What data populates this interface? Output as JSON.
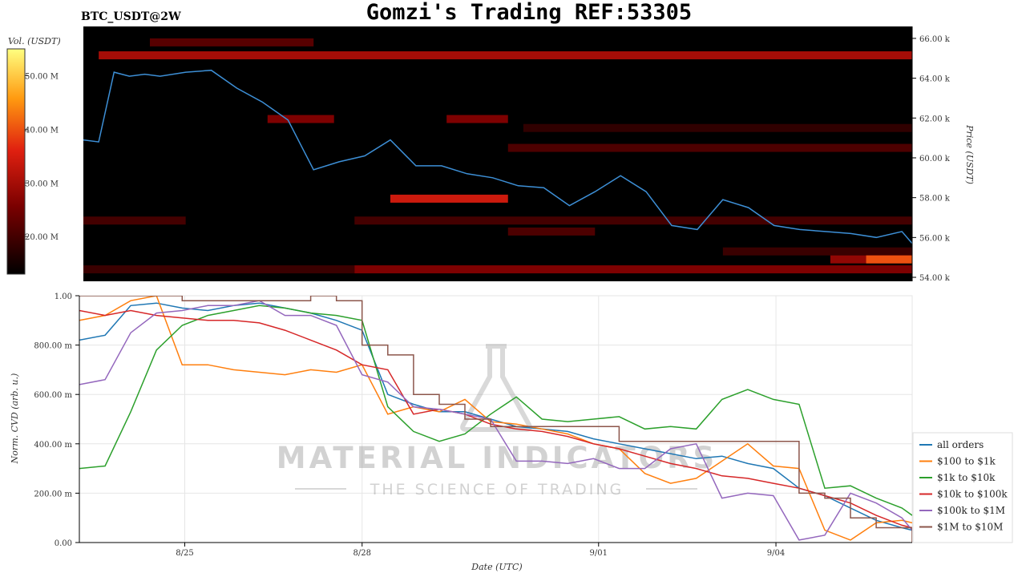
{
  "header": {
    "pair": "BTC_USDT@2W",
    "title": "Gomzi's Trading REF:53305"
  },
  "colorbar": {
    "label": "Vol. (USDT)",
    "ticks": [
      "50.00 M",
      "40.00 M",
      "30.00 M",
      "20.00 M"
    ],
    "tick_values": [
      50,
      40,
      30,
      20
    ],
    "range": [
      13,
      55
    ]
  },
  "watermark": {
    "line1": "MATERIAL INDICATORS",
    "line2": "THE SCIENCE OF TRADING"
  },
  "colors": {
    "price_line": "#3d8fd6",
    "heat_low": "#000000",
    "heat_mid": "#cc1a10",
    "heat_high": "#ffff66"
  },
  "chart_data": [
    {
      "type": "heatmap",
      "title": "",
      "ylabel": "Price (USDT)",
      "ylim": [
        53800,
        66600
      ],
      "y_ticks": [
        54000,
        56000,
        58000,
        60000,
        62000,
        64000,
        66000
      ],
      "y_tick_labels": [
        "54.00 k",
        "56.00 k",
        "58.00 k",
        "60.00 k",
        "62.00 k",
        "64.00 k",
        "66.00 k"
      ],
      "x_range_days": [
        0,
        16.2
      ],
      "price_series": {
        "name": "Price",
        "x_days": [
          0,
          0.3,
          0.6,
          0.9,
          1.2,
          1.5,
          2,
          2.5,
          3,
          3.5,
          4,
          4.5,
          5,
          5.5,
          6,
          6.5,
          7,
          7.5,
          8,
          8.5,
          9,
          9.5,
          10,
          10.5,
          11,
          11.5,
          12,
          12.5,
          13,
          13.5,
          14,
          14.5,
          15,
          15.5,
          16,
          16.2
        ],
        "values": [
          60900,
          60800,
          64300,
          64100,
          64200,
          64100,
          64300,
          64400,
          63500,
          62800,
          61900,
          59400,
          59800,
          60100,
          60900,
          59600,
          59600,
          59200,
          59000,
          58600,
          58500,
          57600,
          58300,
          59100,
          58300,
          56600,
          56400,
          57900,
          57500,
          56600,
          56400,
          56300,
          56200,
          56000,
          56300,
          55700
        ]
      },
      "heat_bands": [
        {
          "price": 65150,
          "x_from": 0.3,
          "x_to": 16.2,
          "vol": 30
        },
        {
          "price": 65800,
          "x_from": 1.3,
          "x_to": 4.5,
          "vol": 22
        },
        {
          "price": 61950,
          "x_from": 3.6,
          "x_to": 4.9,
          "vol": 26
        },
        {
          "price": 61950,
          "x_from": 7.1,
          "x_to": 8.3,
          "vol": 26
        },
        {
          "price": 61500,
          "x_from": 8.6,
          "x_to": 16.2,
          "vol": 18
        },
        {
          "price": 60500,
          "x_from": 8.3,
          "x_to": 16.2,
          "vol": 21
        },
        {
          "price": 57950,
          "x_from": 6.0,
          "x_to": 8.3,
          "vol": 34
        },
        {
          "price": 56850,
          "x_from": 0.0,
          "x_to": 2.0,
          "vol": 20
        },
        {
          "price": 56850,
          "x_from": 5.3,
          "x_to": 16.2,
          "vol": 20
        },
        {
          "price": 56300,
          "x_from": 8.3,
          "x_to": 10.0,
          "vol": 21
        },
        {
          "price": 55300,
          "x_from": 12.5,
          "x_to": 16.2,
          "vol": 19
        },
        {
          "price": 54900,
          "x_from": 14.6,
          "x_to": 16.2,
          "vol": 28
        },
        {
          "price": 54900,
          "x_from": 15.3,
          "x_to": 16.2,
          "vol": 40
        },
        {
          "price": 54400,
          "x_from": 0.0,
          "x_to": 5.3,
          "vol": 19
        },
        {
          "price": 54400,
          "x_from": 5.3,
          "x_to": 16.2,
          "vol": 26
        }
      ]
    },
    {
      "type": "line",
      "title": "",
      "xlabel": "Date (UTC)",
      "ylabel": "Norm. CVD (arb. u.)",
      "ylim": [
        0,
        1
      ],
      "y_ticks": [
        0,
        0.2,
        0.4,
        0.6,
        0.8,
        1.0
      ],
      "y_tick_labels": [
        "0.00",
        "200.00 m",
        "400.00 m",
        "600.00 m",
        "800.00 m",
        "1.00"
      ],
      "x_range_days": [
        0,
        16.2
      ],
      "x_ticks_days": [
        2.05,
        5.5,
        10.1,
        13.55
      ],
      "x_tick_labels": [
        "8/25",
        "8/28",
        "9/01",
        "9/04"
      ],
      "grid": true,
      "legend_position": "bottom-right",
      "x": [
        0,
        0.5,
        1,
        1.5,
        2,
        2.5,
        3,
        3.5,
        4,
        4.5,
        5,
        5.5,
        6,
        6.5,
        7,
        7.5,
        8,
        8.5,
        9,
        9.5,
        10,
        10.5,
        11,
        11.5,
        12,
        12.5,
        13,
        13.5,
        14,
        14.5,
        15,
        15.5,
        16,
        16.2
      ],
      "series": [
        {
          "name": "all orders",
          "color": "#1f77b4",
          "values": [
            0.82,
            0.84,
            0.96,
            0.97,
            0.95,
            0.94,
            0.96,
            0.97,
            0.95,
            0.93,
            0.9,
            0.86,
            0.6,
            0.56,
            0.53,
            0.53,
            0.5,
            0.47,
            0.46,
            0.45,
            0.42,
            0.4,
            0.38,
            0.36,
            0.34,
            0.35,
            0.32,
            0.3,
            0.22,
            0.19,
            0.14,
            0.09,
            0.06,
            0.05
          ]
        },
        {
          "name": "$100 to $1k",
          "color": "#ff7f0e",
          "values": [
            0.9,
            0.92,
            0.98,
            1.0,
            0.72,
            0.72,
            0.7,
            0.69,
            0.68,
            0.7,
            0.69,
            0.72,
            0.52,
            0.55,
            0.53,
            0.58,
            0.49,
            0.48,
            0.46,
            0.44,
            0.4,
            0.38,
            0.28,
            0.24,
            0.26,
            0.33,
            0.4,
            0.31,
            0.3,
            0.05,
            0.01,
            0.08,
            0.09,
            0.08
          ]
        },
        {
          "name": "$1k to $10k",
          "color": "#2ca02c",
          "values": [
            0.3,
            0.31,
            0.53,
            0.78,
            0.88,
            0.92,
            0.94,
            0.96,
            0.95,
            0.93,
            0.92,
            0.9,
            0.55,
            0.45,
            0.41,
            0.44,
            0.52,
            0.59,
            0.5,
            0.49,
            0.5,
            0.51,
            0.46,
            0.47,
            0.46,
            0.58,
            0.62,
            0.58,
            0.56,
            0.22,
            0.23,
            0.18,
            0.14,
            0.11
          ]
        },
        {
          "name": "$10k to $100k",
          "color": "#d62728",
          "values": [
            0.94,
            0.92,
            0.94,
            0.92,
            0.91,
            0.9,
            0.9,
            0.89,
            0.86,
            0.82,
            0.78,
            0.72,
            0.7,
            0.52,
            0.54,
            0.52,
            0.48,
            0.46,
            0.45,
            0.43,
            0.4,
            0.38,
            0.35,
            0.32,
            0.3,
            0.27,
            0.26,
            0.24,
            0.22,
            0.19,
            0.16,
            0.11,
            0.07,
            0.06
          ]
        },
        {
          "name": "$100k to $1M",
          "color": "#9467bd",
          "values": [
            0.64,
            0.66,
            0.85,
            0.93,
            0.94,
            0.96,
            0.96,
            0.98,
            0.92,
            0.92,
            0.88,
            0.68,
            0.65,
            0.55,
            0.54,
            0.52,
            0.5,
            0.33,
            0.33,
            0.32,
            0.34,
            0.3,
            0.3,
            0.38,
            0.4,
            0.18,
            0.2,
            0.19,
            0.01,
            0.03,
            0.2,
            0.16,
            0.1,
            0.05
          ]
        },
        {
          "name": "$1M to $10M",
          "color": "#8c564b",
          "values": [
            1.0,
            1.0,
            1.0,
            1.0,
            0.98,
            0.98,
            0.98,
            0.98,
            0.98,
            1.0,
            0.98,
            0.8,
            0.76,
            0.6,
            0.56,
            0.5,
            0.47,
            0.47,
            0.47,
            0.47,
            0.47,
            0.41,
            0.41,
            0.41,
            0.41,
            0.41,
            0.41,
            0.41,
            0.2,
            0.18,
            0.1,
            0.06,
            0.06,
            0.0
          ]
        }
      ]
    }
  ]
}
